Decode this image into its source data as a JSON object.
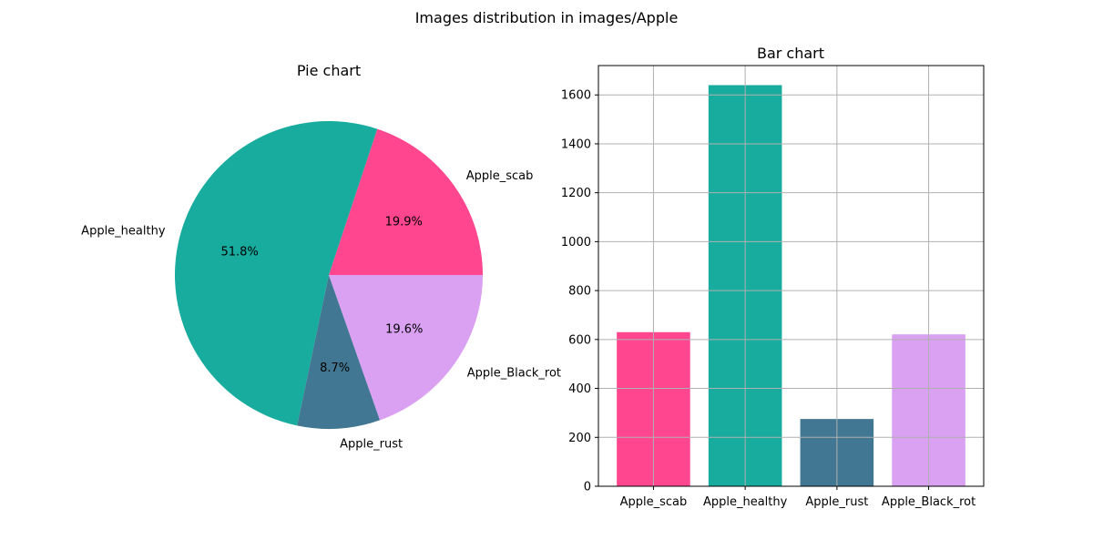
{
  "figure": {
    "suptitle": "Images distribution in images/Apple"
  },
  "chart_data": [
    {
      "type": "pie",
      "title": "Pie chart",
      "categories": [
        "Apple_scab",
        "Apple_healthy",
        "Apple_rust",
        "Apple_Black_rot"
      ],
      "values": [
        630,
        1640,
        275,
        621
      ],
      "percent_labels": [
        "19.9%",
        "51.8%",
        "8.7%",
        "19.6%"
      ],
      "colors": [
        "#ff468e",
        "#17ac9e",
        "#427793",
        "#daa0f2"
      ],
      "start_angle": 0,
      "direction": "counterclockwise"
    },
    {
      "type": "bar",
      "title": "Bar chart",
      "categories": [
        "Apple_scab",
        "Apple_healthy",
        "Apple_rust",
        "Apple_Black_rot"
      ],
      "values": [
        630,
        1640,
        275,
        621
      ],
      "colors": [
        "#ff468e",
        "#17ac9e",
        "#427793",
        "#daa0f2"
      ],
      "ylim": [
        0,
        1720
      ],
      "yticks": [
        0,
        200,
        400,
        600,
        800,
        1000,
        1200,
        1400,
        1600
      ],
      "grid": true,
      "xlabel": "",
      "ylabel": ""
    }
  ]
}
